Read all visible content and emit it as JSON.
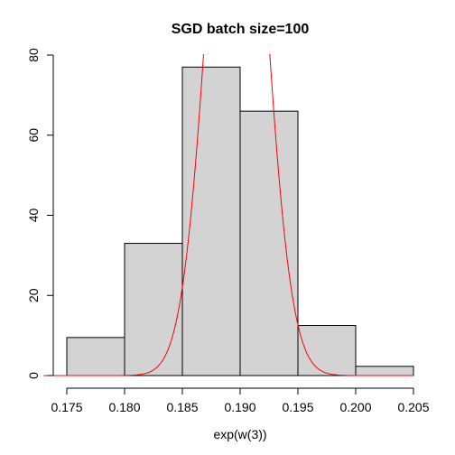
{
  "chart_data": {
    "type": "bar",
    "title": "SGD batch size=100",
    "xlabel": "exp(w(3))",
    "ylabel": "",
    "xlim": [
      0.175,
      0.205
    ],
    "ylim": [
      0,
      80
    ],
    "x_ticks": [
      "0.175",
      "0.180",
      "0.185",
      "0.190",
      "0.195",
      "0.200",
      "0.205"
    ],
    "y_ticks": [
      "0",
      "20",
      "40",
      "60",
      "80"
    ],
    "bins": [
      {
        "start": 0.175,
        "end": 0.18,
        "value": 9.5
      },
      {
        "start": 0.18,
        "end": 0.185,
        "value": 33
      },
      {
        "start": 0.185,
        "end": 0.19,
        "value": 77
      },
      {
        "start": 0.19,
        "end": 0.195,
        "value": 66
      },
      {
        "start": 0.195,
        "end": 0.2,
        "value": 12.5
      },
      {
        "start": 0.2,
        "end": 0.205,
        "value": 2.3
      }
    ],
    "overlay_curve": {
      "type": "normal-density",
      "color": "#ff0000",
      "mean": 0.1897,
      "sd": 0.00232,
      "peak": 172
    },
    "bar_color": "#d3d3d3",
    "grid": false
  }
}
